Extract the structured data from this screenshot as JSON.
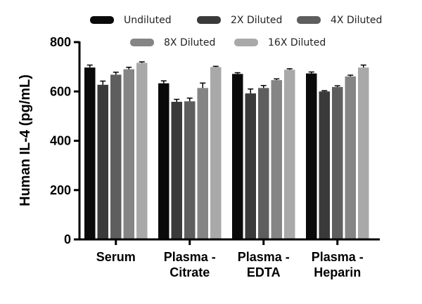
{
  "chart_data": {
    "type": "bar",
    "title": "",
    "xlabel": "",
    "ylabel": "Human IL-4 (pg/mL)",
    "ylim": [
      0,
      800
    ],
    "yticks": [
      0,
      200,
      400,
      600,
      800
    ],
    "categories": [
      [
        "Serum"
      ],
      [
        "Plasma -",
        "Citrate"
      ],
      [
        "Plasma -",
        "EDTA"
      ],
      [
        "Plasma -",
        "Heparin"
      ]
    ],
    "series": [
      {
        "name": "Undiluted",
        "color": "#0a0a0a",
        "values": [
          697,
          633,
          671,
          673
        ],
        "errors": [
          10,
          10,
          5,
          6
        ]
      },
      {
        "name": "2X Diluted",
        "color": "#3a3a3a",
        "values": [
          627,
          558,
          592,
          600
        ],
        "errors": [
          15,
          10,
          18,
          3
        ]
      },
      {
        "name": "4X Diluted",
        "color": "#5e5e5e",
        "values": [
          668,
          560,
          614,
          618
        ],
        "errors": [
          10,
          13,
          10,
          5
        ]
      },
      {
        "name": "8X Diluted",
        "color": "#858585",
        "values": [
          690,
          614,
          646,
          661
        ],
        "errors": [
          8,
          20,
          5,
          5
        ]
      },
      {
        "name": "16X Diluted",
        "color": "#a9a9a9",
        "values": [
          716,
          699,
          688,
          697
        ],
        "errors": [
          4,
          3,
          4,
          10
        ]
      }
    ],
    "legend": "top"
  }
}
